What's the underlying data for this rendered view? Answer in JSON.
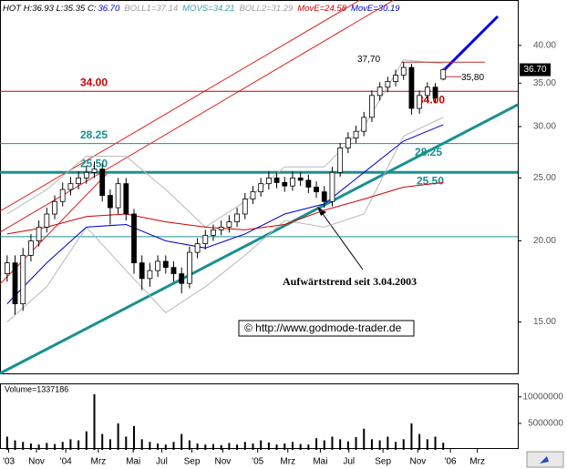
{
  "chart_data": {
    "type": "candlestick",
    "header": [
      {
        "text": "HOT H:36.93 L:35.35 C:",
        "color": "#000000"
      },
      {
        "text": "36.70",
        "color": "#0000cc"
      },
      {
        "text": "BOLL1=37.14",
        "color": "#a0a0a0"
      },
      {
        "text": "MOVS=34.21",
        "color": "#40a0a0"
      },
      {
        "text": "BOLL2=31.29",
        "color": "#a0a0a0"
      },
      {
        "text": "MovE=24.58",
        "color": "#cc0000"
      },
      {
        "text": "MovE=30.19",
        "color": "#0000cc"
      }
    ],
    "open": [
      17.8,
      18.5,
      16.0,
      19.0,
      20.0,
      21.0,
      22.0,
      23.0,
      24.0,
      24.5,
      25.0,
      25.5,
      25.8,
      23.5,
      22.5,
      24.5,
      22.0,
      18.5,
      17.5,
      18.0,
      18.6,
      18.2,
      17.8,
      17.2,
      19.2,
      19.8,
      20.4,
      20.8,
      21.0,
      21.4,
      22.0,
      23.2,
      23.8,
      24.5,
      25.0,
      24.6,
      24.3,
      25.0,
      24.8,
      24.2,
      23.8,
      23.0,
      25.5,
      27.8,
      28.8,
      29.5,
      31.0,
      33.5,
      34.5,
      35.2,
      36.0,
      37.0,
      32.0,
      33.5,
      34.5,
      35.5
    ],
    "high": [
      19.0,
      19.0,
      19.5,
      20.5,
      21.5,
      22.5,
      23.5,
      24.6,
      25.1,
      25.6,
      26.1,
      26.5,
      26.3,
      24.0,
      25.0,
      25.0,
      22.4,
      19.0,
      18.5,
      19.0,
      19.0,
      18.6,
      18.2,
      19.6,
      20.2,
      20.8,
      21.2,
      21.5,
      21.9,
      22.5,
      23.7,
      24.3,
      25.0,
      25.6,
      25.5,
      25.1,
      25.6,
      25.5,
      25.3,
      24.7,
      24.3,
      26.0,
      28.3,
      29.4,
      30.1,
      31.6,
      34.1,
      35.1,
      35.8,
      36.7,
      37.7,
      37.5,
      34.1,
      35.1,
      35.0,
      36.93
    ],
    "low": [
      17.3,
      15.4,
      15.6,
      18.6,
      19.6,
      20.6,
      21.6,
      22.6,
      23.5,
      24.0,
      24.5,
      25.0,
      23.0,
      21.2,
      22.0,
      21.5,
      17.8,
      16.8,
      17.0,
      17.6,
      17.8,
      17.3,
      16.6,
      16.9,
      18.8,
      19.4,
      20.0,
      20.4,
      20.6,
      21.0,
      21.6,
      22.8,
      23.4,
      24.0,
      24.1,
      23.8,
      23.9,
      24.3,
      23.7,
      23.3,
      22.5,
      22.6,
      25.1,
      27.3,
      28.3,
      29.0,
      30.5,
      32.9,
      33.9,
      34.6,
      35.4,
      31.3,
      31.4,
      32.9,
      32.6,
      35.35
    ],
    "close": [
      18.5,
      16.0,
      19.0,
      20.0,
      21.0,
      22.0,
      23.0,
      24.0,
      24.5,
      25.0,
      25.5,
      25.8,
      23.5,
      22.5,
      24.5,
      22.0,
      18.5,
      17.5,
      18.0,
      18.6,
      18.2,
      17.8,
      17.2,
      19.2,
      19.8,
      20.4,
      20.8,
      21.0,
      21.4,
      22.0,
      23.2,
      23.8,
      24.5,
      25.0,
      24.6,
      24.3,
      25.0,
      24.8,
      24.2,
      23.8,
      23.0,
      25.5,
      27.8,
      28.8,
      29.5,
      31.0,
      33.5,
      34.5,
      35.2,
      36.0,
      37.0,
      32.0,
      33.5,
      34.5,
      33.2,
      36.7
    ],
    "up_color": "#ffffff",
    "down_color": "#000000",
    "xlim": [
      -0.9,
      64.4
    ],
    "xticks": [
      {
        "value": 0.2,
        "label": "'03"
      },
      {
        "value": 3.7,
        "label": "Nov"
      },
      {
        "value": 7.4,
        "label": "'04"
      },
      {
        "value": 11.5,
        "label": "Mrz"
      },
      {
        "value": 15.9,
        "label": "Mai"
      },
      {
        "value": 19.5,
        "label": "Jul"
      },
      {
        "value": 23.3,
        "label": "Sep"
      },
      {
        "value": 27.2,
        "label": "Nov"
      },
      {
        "value": 31.6,
        "label": "'05"
      },
      {
        "value": 35.4,
        "label": "Mrz"
      },
      {
        "value": 39.5,
        "label": "Mai"
      },
      {
        "value": 43.1,
        "label": "Jul"
      },
      {
        "value": 47.4,
        "label": "Sep"
      },
      {
        "value": 51.8,
        "label": "Nov"
      },
      {
        "value": 55.9,
        "label": "'06"
      },
      {
        "value": 59.3,
        "label": "Mrz"
      }
    ],
    "ylim": [
      12.5,
      47
    ],
    "log_scale": true,
    "yticks": [
      {
        "value": 15,
        "label": "15.00"
      },
      {
        "value": 20,
        "label": "20.00"
      },
      {
        "value": 25,
        "label": "25.00"
      },
      {
        "value": 30,
        "label": "30.00"
      },
      {
        "value": 35,
        "label": "35.00"
      },
      {
        "value": 40,
        "label": "40.00"
      }
    ],
    "last_price": {
      "value": 36.7,
      "label": "36.70"
    },
    "lines": [
      {
        "color": "#b8b8b8",
        "x": [
          0,
          5,
          10,
          15,
          20,
          25,
          30,
          35,
          40,
          45,
          50,
          55
        ],
        "values": [
          22.0,
          24.0,
          27.0,
          27.0,
          24.0,
          21.0,
          23.0,
          26.0,
          26.0,
          30.0,
          38.0,
          37.5
        ]
      },
      {
        "color": "#b8b8b8",
        "x": [
          0,
          5,
          10,
          15,
          20,
          25,
          30,
          35,
          40,
          45,
          50,
          55
        ],
        "values": [
          15.0,
          17.0,
          21.0,
          18.0,
          15.5,
          17.0,
          19.0,
          21.5,
          21.0,
          22.0,
          29.0,
          31.0
        ]
      },
      {
        "color": "#cc0000",
        "x": [
          0,
          5,
          10,
          15,
          20,
          25,
          30,
          35,
          40,
          45,
          50,
          55
        ],
        "values": [
          20.5,
          21.0,
          21.8,
          22.0,
          21.4,
          21.0,
          20.8,
          21.2,
          22.3,
          23.2,
          24.2,
          24.6
        ]
      },
      {
        "color": "#0000cc",
        "x": [
          0,
          5,
          10,
          15,
          20,
          25,
          30,
          35,
          40,
          45,
          50,
          55
        ],
        "values": [
          16.0,
          18.5,
          21.0,
          21.2,
          20.0,
          19.5,
          20.5,
          22.0,
          22.8,
          25.5,
          28.5,
          30.2
        ]
      }
    ],
    "levels": [
      {
        "value": 34,
        "label": "34.00",
        "color": "#cc0000"
      },
      {
        "value": 28.25,
        "label": "28.25",
        "color": "#1a9090"
      },
      {
        "value": 25.5,
        "label": "25.50",
        "color": "#1a9090",
        "thick": true
      },
      {
        "value": 20.3,
        "color": "#1a9090"
      }
    ],
    "resistances": [
      {
        "value": 37.7,
        "label": "37,70"
      },
      {
        "value": 35.8,
        "label": "35,80"
      }
    ],
    "annotation": "Aufwärtstrend seit 3.04.2003",
    "copyright": "© http://www.godmode-trader.de",
    "volume": {
      "label": "Volume=1337186",
      "color": "#000000",
      "ylim": [
        0,
        12200000
      ],
      "yticks": [
        5000000,
        10000000
      ],
      "values": [
        2500000,
        1800000,
        1500000,
        1200000,
        1000000,
        1300000,
        1100000,
        1500000,
        2000000,
        1800000,
        3500000,
        10500000,
        3000000,
        2000000,
        5000000,
        2500000,
        4500000,
        2000000,
        1500000,
        1200000,
        1000000,
        1500000,
        3000000,
        1800000,
        1200000,
        1000000,
        1100000,
        900000,
        1300000,
        1000000,
        1500000,
        1200000,
        1800000,
        1400000,
        1000000,
        1200000,
        1500000,
        1100000,
        1000000,
        2200000,
        1800000,
        2500000,
        2000000,
        1600000,
        2400000,
        4000000,
        2000000,
        1800000,
        2500000,
        1500000,
        2000000,
        5000000,
        3000000,
        2000000,
        2500000,
        1337186
      ]
    }
  }
}
